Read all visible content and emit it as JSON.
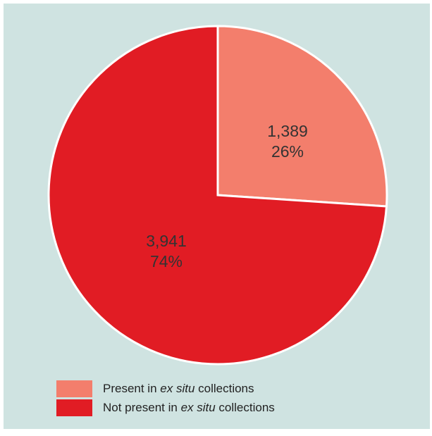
{
  "chart_data": {
    "type": "pie",
    "slices": [
      {
        "name": "Present in ex situ collections",
        "value": 1389,
        "value_label": "1,389",
        "percent_label": "26%",
        "color": "#f37e6c"
      },
      {
        "name": "Not present in ex situ collections",
        "value": 3941,
        "value_label": "3,941",
        "percent_label": "74%",
        "color": "#e11c24"
      }
    ],
    "start_angle_deg": 0,
    "direction": "clockwise",
    "legend_position": "bottom-left"
  },
  "background_color": "#cfe3e1",
  "legend": [
    {
      "pre": "Present in ",
      "ital": "ex situ",
      "post": " collections",
      "color": "#f37e6c"
    },
    {
      "pre": "Not present in ",
      "ital": "ex situ",
      "post": " collections",
      "color": "#e11c24"
    }
  ]
}
